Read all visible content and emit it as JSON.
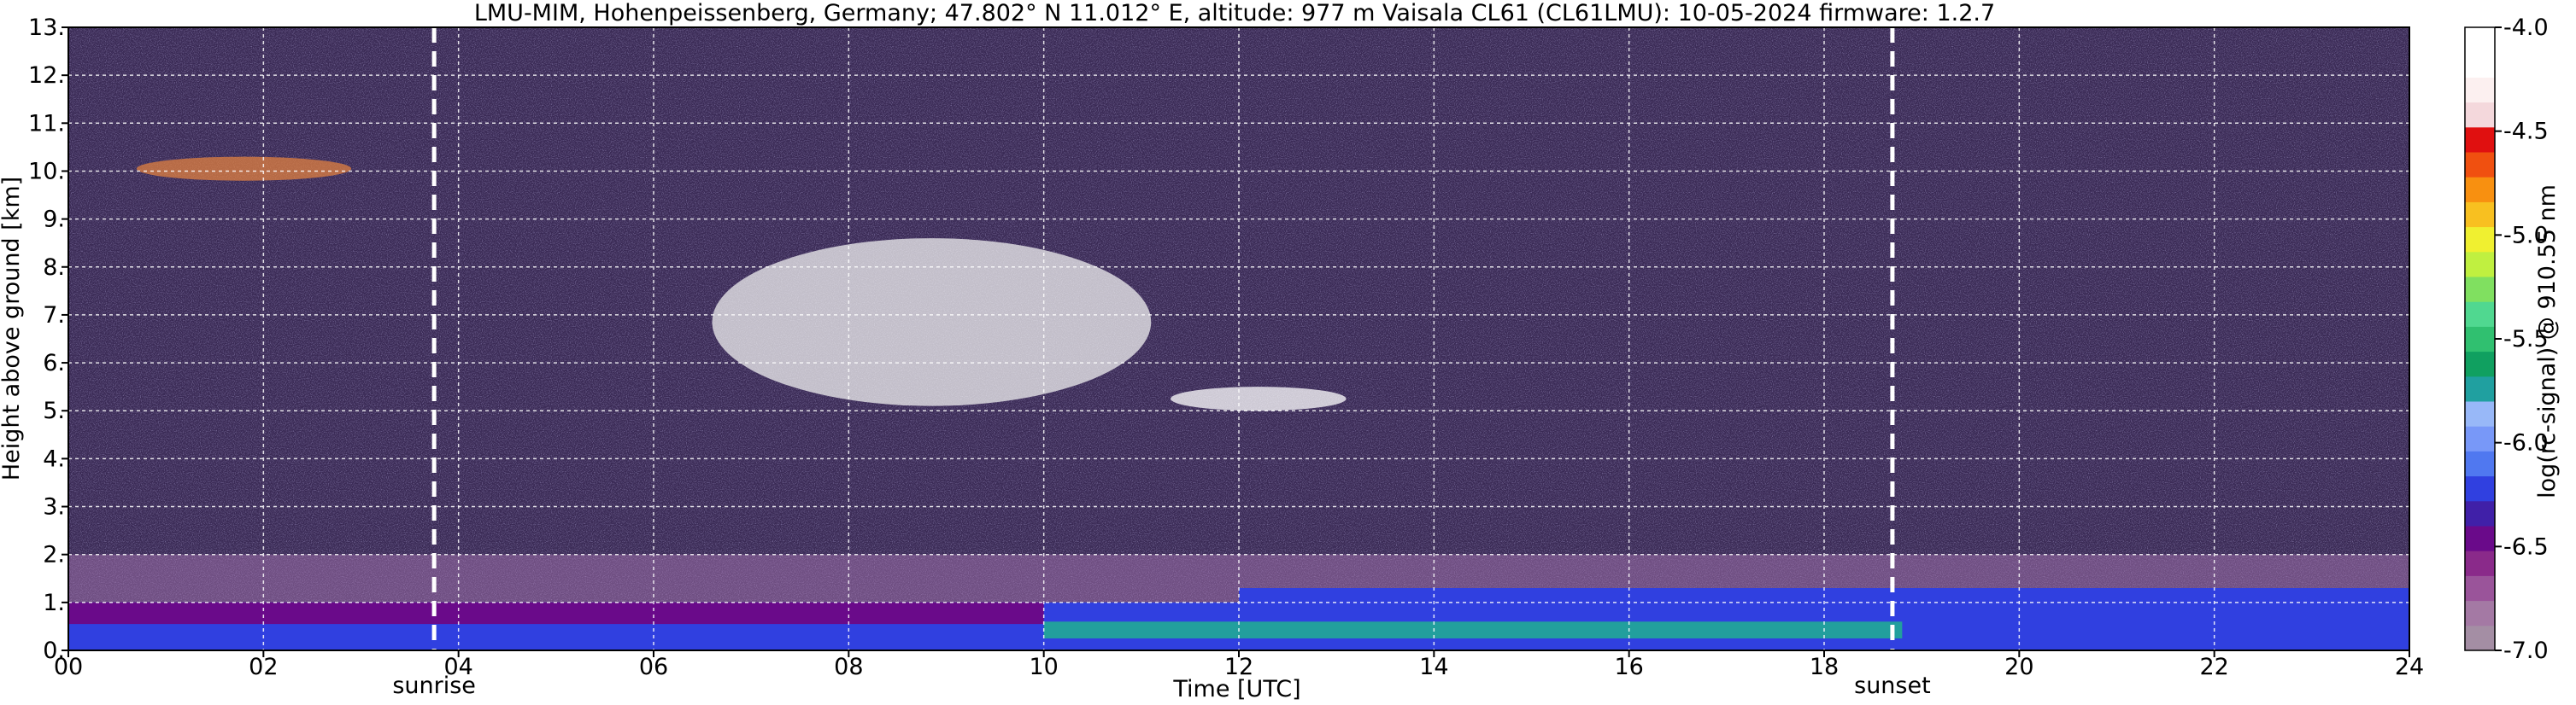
{
  "chart_data": {
    "type": "heatmap",
    "title": "LMU-MIM, Hohenpeissenberg, Germany; 47.802° N 11.012° E, altitude: 977 m    Vaisala CL61 (CL61LMU): 10-05-2024    firmware: 1.2.7",
    "xlabel": "Time [UTC]",
    "ylabel": "Height above ground [km]",
    "colorbar_label": "log(rc-signal) @ 910.55 nm",
    "xlim": [
      0,
      24
    ],
    "ylim": [
      0,
      13
    ],
    "x_ticks": [
      0,
      2,
      4,
      6,
      8,
      10,
      12,
      14,
      16,
      18,
      20,
      22,
      24
    ],
    "x_tick_labels": [
      "00",
      "02",
      "04",
      "06",
      "08",
      "10",
      "12",
      "14",
      "16",
      "18",
      "20",
      "22",
      "24"
    ],
    "y_ticks": [
      0,
      1,
      2,
      3,
      4,
      5,
      6,
      7,
      8,
      9,
      10,
      11,
      12,
      13
    ],
    "y_tick_labels": [
      "0.",
      "1.",
      "2.",
      "3.",
      "4.",
      "5.",
      "6.",
      "7.",
      "8.",
      "9.",
      "10.",
      "11.",
      "12.",
      "13."
    ],
    "grid": true,
    "clim": [
      -7.0,
      -4.0
    ],
    "colorbar_ticks": [
      -7.0,
      -6.5,
      -6.0,
      -5.5,
      -5.0,
      -4.5,
      -4.0
    ],
    "colorbar_tick_labels": [
      "-7.0",
      "-6.5",
      "-6.0",
      "-5.5",
      "-5.0",
      "-4.5",
      "-4.0"
    ],
    "colorbar_colors": [
      "#a48ea4",
      "#a479a4",
      "#9a549a",
      "#8a2a8a",
      "#6a0a8a",
      "#4020a8",
      "#3040e0",
      "#5078f0",
      "#7898f8",
      "#98b8f8",
      "#20a0a0",
      "#10a060",
      "#30c070",
      "#50d890",
      "#80e060",
      "#c0f040",
      "#f0f030",
      "#f8c020",
      "#f89010",
      "#f05010",
      "#e01010",
      "#f4d8dc",
      "#fcf0f0",
      "#ffffff",
      "#ffffff"
    ],
    "background_color": "#3a2a55",
    "sunrise": {
      "time": 3.75,
      "label": "sunrise"
    },
    "sunset": {
      "time": 18.7,
      "label": "sunset"
    },
    "layers": [
      {
        "name": "boundary-layer",
        "t_start": 0,
        "t_end": 24,
        "top_km": 1.0,
        "color": "#3040e0"
      },
      {
        "name": "cirrus-layer",
        "t_start": 6.6,
        "t_end": 11.1,
        "base_km": 5.1,
        "top_km": 8.6,
        "color": "#f0f0f0"
      },
      {
        "name": "thin-layer",
        "t_start": 11.3,
        "t_end": 13.1,
        "base_km": 5.0,
        "top_km": 5.5,
        "color": "#ffffff"
      },
      {
        "name": "elevated-aerosol",
        "t_start": 0.7,
        "t_end": 2.9,
        "base_km": 9.8,
        "top_km": 10.3,
        "color": "#e08040"
      }
    ]
  }
}
